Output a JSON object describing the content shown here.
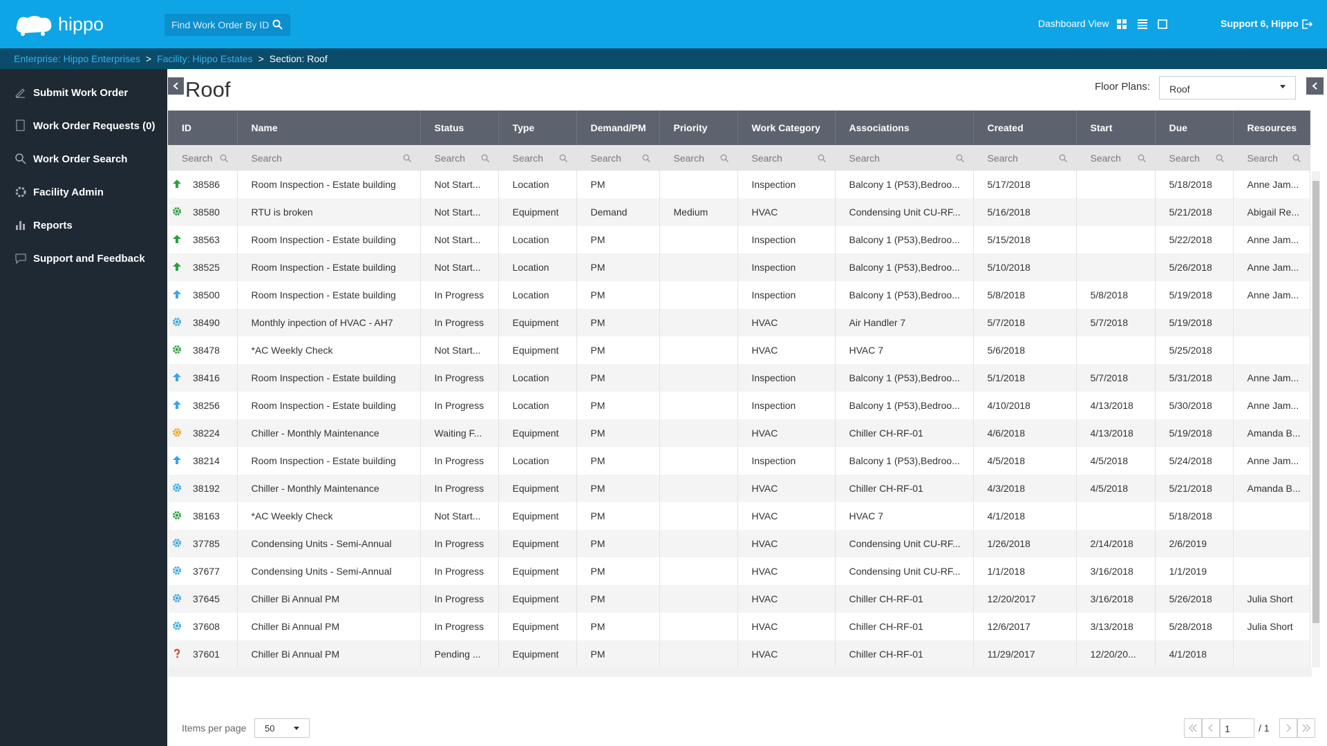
{
  "header": {
    "logo": "hippo",
    "search_placeholder": "Find Work Order By ID",
    "dashboard_view": "Dashboard View",
    "user": "Support 6, Hippo"
  },
  "breadcrumb": {
    "items": [
      "Enterprise: Hippo Enterprises",
      "Facility: Hippo Estates",
      "Section: Roof"
    ],
    "separator": ">"
  },
  "sidebar": [
    "Submit Work Order",
    "Work Order Requests (0)",
    "Work Order Search",
    "Facility Admin",
    "Reports",
    "Support and Feedback"
  ],
  "page": {
    "title": "Roof",
    "floor_plans_label": "Floor Plans:",
    "floor_plan": "Roof"
  },
  "table": {
    "columns": [
      "ID",
      "Name",
      "Status",
      "Type",
      "Demand/PM",
      "Priority",
      "Work Category",
      "Associations",
      "Created",
      "Start",
      "Due",
      "Resources"
    ],
    "search_placeholder": "Search",
    "rows": [
      {
        "icon": {
          "shape": "arrow",
          "color": "#2e9e3e"
        },
        "cells": [
          "38586",
          "Room Inspection - Estate building",
          "Not Start...",
          "Location",
          "PM",
          "",
          "Inspection",
          "Balcony 1 (P53),Bedroo...",
          "5/17/2018",
          "",
          "5/18/2018",
          "Anne Jam..."
        ]
      },
      {
        "icon": {
          "shape": "gear",
          "color": "#2e9e3e"
        },
        "cells": [
          "38580",
          "RTU is broken",
          "Not Start...",
          "Equipment",
          "Demand",
          "Medium",
          "HVAC",
          "Condensing Unit CU-RF...",
          "5/16/2018",
          "",
          "5/21/2018",
          "Abigail Re..."
        ]
      },
      {
        "icon": {
          "shape": "arrow",
          "color": "#2e9e3e"
        },
        "cells": [
          "38563",
          "Room Inspection - Estate building",
          "Not Start...",
          "Location",
          "PM",
          "",
          "Inspection",
          "Balcony 1 (P53),Bedroo...",
          "5/15/2018",
          "",
          "5/22/2018",
          "Anne Jam..."
        ]
      },
      {
        "icon": {
          "shape": "arrow",
          "color": "#2e9e3e"
        },
        "cells": [
          "38525",
          "Room Inspection - Estate building",
          "Not Start...",
          "Location",
          "PM",
          "",
          "Inspection",
          "Balcony 1 (P53),Bedroo...",
          "5/10/2018",
          "",
          "5/26/2018",
          "Anne Jam..."
        ]
      },
      {
        "icon": {
          "shape": "arrow",
          "color": "#3aa6e0"
        },
        "cells": [
          "38500",
          "Room Inspection - Estate building",
          "In Progress",
          "Location",
          "PM",
          "",
          "Inspection",
          "Balcony 1 (P53),Bedroo...",
          "5/8/2018",
          "5/8/2018",
          "5/19/2018",
          "Anne Jam..."
        ]
      },
      {
        "icon": {
          "shape": "gear",
          "color": "#3aa6e0"
        },
        "cells": [
          "38490",
          "Monthly inpection of HVAC - AH7",
          "In Progress",
          "Equipment",
          "PM",
          "",
          "HVAC",
          "Air Handler 7",
          "5/7/2018",
          "5/7/2018",
          "5/19/2018",
          ""
        ]
      },
      {
        "icon": {
          "shape": "gear",
          "color": "#2e9e3e"
        },
        "cells": [
          "38478",
          "*AC Weekly Check",
          "Not Start...",
          "Equipment",
          "PM",
          "",
          "HVAC",
          "HVAC 7",
          "5/6/2018",
          "",
          "5/25/2018",
          ""
        ]
      },
      {
        "icon": {
          "shape": "arrow",
          "color": "#3aa6e0"
        },
        "cells": [
          "38416",
          "Room Inspection - Estate building",
          "In Progress",
          "Location",
          "PM",
          "",
          "Inspection",
          "Balcony 1 (P53),Bedroo...",
          "5/1/2018",
          "5/7/2018",
          "5/31/2018",
          "Anne Jam..."
        ]
      },
      {
        "icon": {
          "shape": "arrow",
          "color": "#3aa6e0"
        },
        "cells": [
          "38256",
          "Room Inspection - Estate building",
          "In Progress",
          "Location",
          "PM",
          "",
          "Inspection",
          "Balcony 1 (P53),Bedroo...",
          "4/10/2018",
          "4/13/2018",
          "5/30/2018",
          "Anne Jam..."
        ]
      },
      {
        "icon": {
          "shape": "gear",
          "color": "#f0a20a"
        },
        "cells": [
          "38224",
          "Chiller - Monthly Maintenance",
          "Waiting F...",
          "Equipment",
          "PM",
          "",
          "HVAC",
          "Chiller CH-RF-01",
          "4/6/2018",
          "4/13/2018",
          "5/19/2018",
          "Amanda B..."
        ]
      },
      {
        "icon": {
          "shape": "arrow",
          "color": "#3aa6e0"
        },
        "cells": [
          "38214",
          "Room Inspection - Estate building",
          "In Progress",
          "Location",
          "PM",
          "",
          "Inspection",
          "Balcony 1 (P53),Bedroo...",
          "4/5/2018",
          "4/5/2018",
          "5/24/2018",
          "Anne Jam..."
        ]
      },
      {
        "icon": {
          "shape": "gear",
          "color": "#3aa6e0"
        },
        "cells": [
          "38192",
          "Chiller - Monthly Maintenance",
          "In Progress",
          "Equipment",
          "PM",
          "",
          "HVAC",
          "Chiller CH-RF-01",
          "4/3/2018",
          "4/5/2018",
          "5/21/2018",
          "Amanda B..."
        ]
      },
      {
        "icon": {
          "shape": "gear",
          "color": "#2e9e3e"
        },
        "cells": [
          "38163",
          "*AC Weekly Check",
          "Not Start...",
          "Equipment",
          "PM",
          "",
          "HVAC",
          "HVAC 7",
          "4/1/2018",
          "",
          "5/18/2018",
          ""
        ]
      },
      {
        "icon": {
          "shape": "gear",
          "color": "#3aa6e0"
        },
        "cells": [
          "37785",
          "Condensing Units - Semi-Annual",
          "In Progress",
          "Equipment",
          "PM",
          "",
          "HVAC",
          "Condensing Unit CU-RF...",
          "1/26/2018",
          "2/14/2018",
          "2/6/2019",
          ""
        ]
      },
      {
        "icon": {
          "shape": "gear",
          "color": "#3aa6e0"
        },
        "cells": [
          "37677",
          "Condensing Units - Semi-Annual",
          "In Progress",
          "Equipment",
          "PM",
          "",
          "HVAC",
          "Condensing Unit CU-RF...",
          "1/1/2018",
          "3/16/2018",
          "1/1/2019",
          ""
        ]
      },
      {
        "icon": {
          "shape": "gear",
          "color": "#3aa6e0"
        },
        "cells": [
          "37645",
          "Chiller Bi Annual PM",
          "In Progress",
          "Equipment",
          "PM",
          "",
          "HVAC",
          "Chiller CH-RF-01",
          "12/20/2017",
          "3/16/2018",
          "5/26/2018",
          "Julia Short"
        ]
      },
      {
        "icon": {
          "shape": "gear",
          "color": "#3aa6e0"
        },
        "cells": [
          "37608",
          "Chiller Bi Annual PM",
          "In Progress",
          "Equipment",
          "PM",
          "",
          "HVAC",
          "Chiller CH-RF-01",
          "12/6/2017",
          "3/13/2018",
          "5/28/2018",
          "Julia Short"
        ]
      },
      {
        "icon": {
          "shape": "question",
          "color": "#d9381e"
        },
        "cells": [
          "37601",
          "Chiller Bi Annual PM",
          "Pending ...",
          "Equipment",
          "PM",
          "",
          "HVAC",
          "Chiller CH-RF-01",
          "11/29/2017",
          "12/20/20...",
          "4/1/2018",
          ""
        ]
      }
    ]
  },
  "footer": {
    "items_per_page_label": "Items per page",
    "items_per_page": "50",
    "page": "1",
    "pages": "/ 1"
  }
}
